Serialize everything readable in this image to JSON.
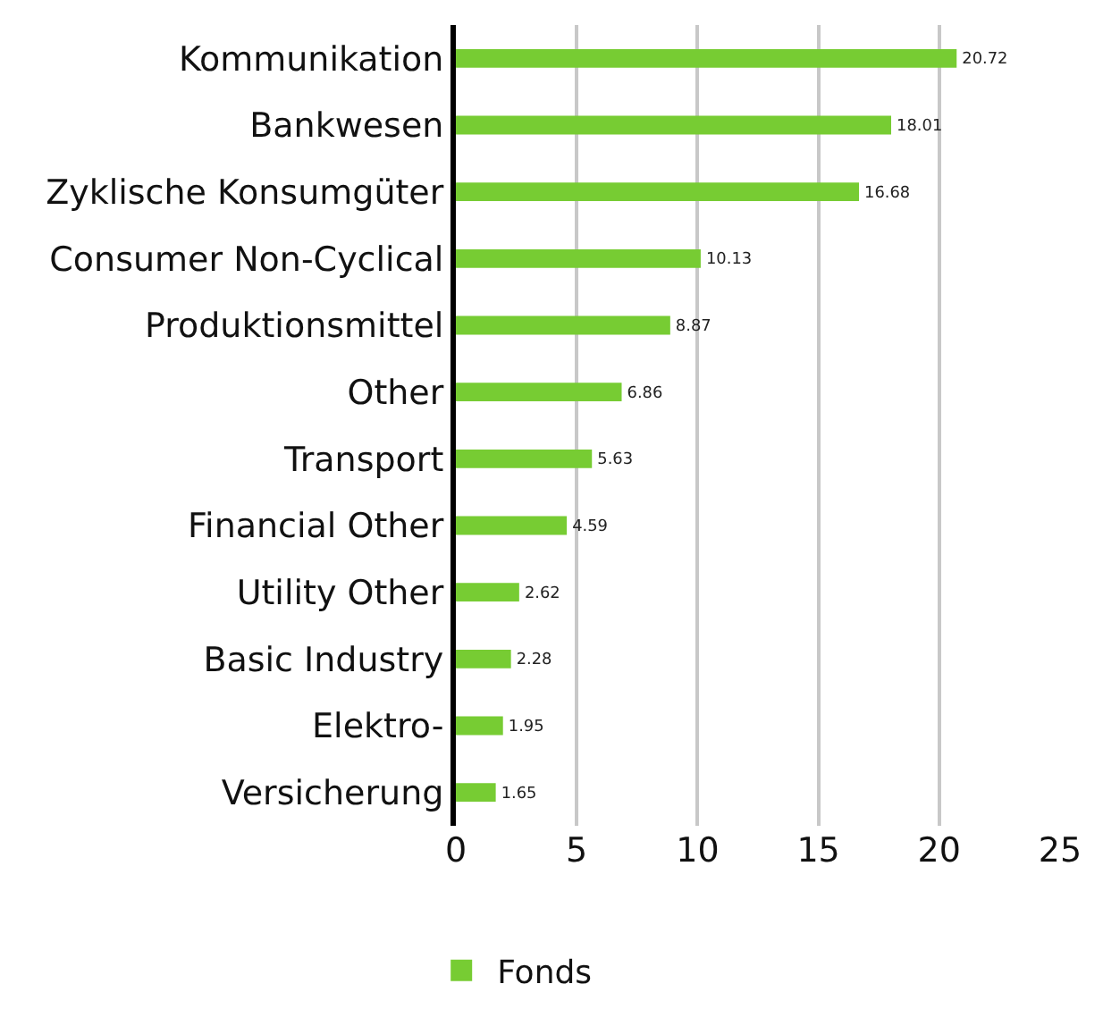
{
  "chart_data": {
    "type": "bar",
    "orientation": "horizontal",
    "categories": [
      "Kommunikation",
      "Bankwesen",
      "Zyklische Konsumgüter",
      "Consumer Non-Cyclical",
      "Produktionsmittel",
      "Other",
      "Transport",
      "Financial Other",
      "Utility Other",
      "Basic Industry",
      "Elektro-",
      "Versicherung"
    ],
    "series": [
      {
        "name": "Fonds",
        "color": "#77cc33",
        "values": [
          20.72,
          18.01,
          16.68,
          10.13,
          8.87,
          6.86,
          5.63,
          4.59,
          2.62,
          2.28,
          1.95,
          1.65
        ]
      }
    ],
    "xlim": [
      0,
      25
    ],
    "xticks": [
      0,
      5,
      10,
      15,
      20,
      25
    ],
    "grid": "x",
    "legend": "bottom",
    "data_labels": true
  }
}
